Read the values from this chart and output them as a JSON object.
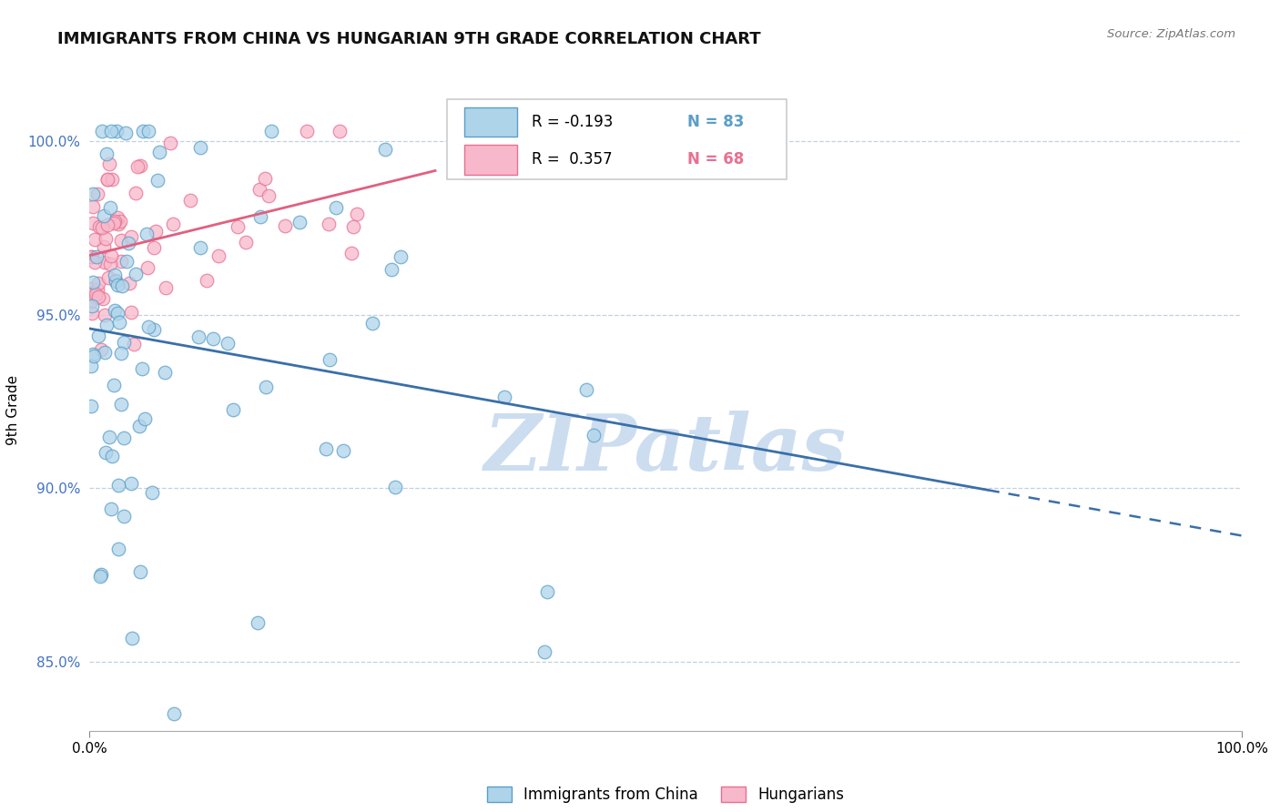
{
  "title": "IMMIGRANTS FROM CHINA VS HUNGARIAN 9TH GRADE CORRELATION CHART",
  "source_text": "Source: ZipAtlas.com",
  "ylabel": "9th Grade",
  "legend_blue_label": "Immigrants from China",
  "legend_pink_label": "Hungarians",
  "R_blue": -0.193,
  "N_blue": 83,
  "R_pink": 0.357,
  "N_pink": 68,
  "blue_face": "#aed4ea",
  "blue_edge": "#5a9ec8",
  "blue_line": "#3a6fa8",
  "pink_face": "#f8b8cb",
  "pink_edge": "#e87090",
  "pink_line": "#e06080",
  "watermark": "ZIPatlas",
  "watermark_color": "#ccddf0",
  "xlim": [
    0,
    100
  ],
  "ylim": [
    83,
    101.5
  ],
  "yticks": [
    85,
    90,
    95,
    100
  ],
  "ytick_labels": [
    "85.0%",
    "90.0%",
    "95.0%",
    "100.0%"
  ],
  "tick_color": "#4472c4"
}
